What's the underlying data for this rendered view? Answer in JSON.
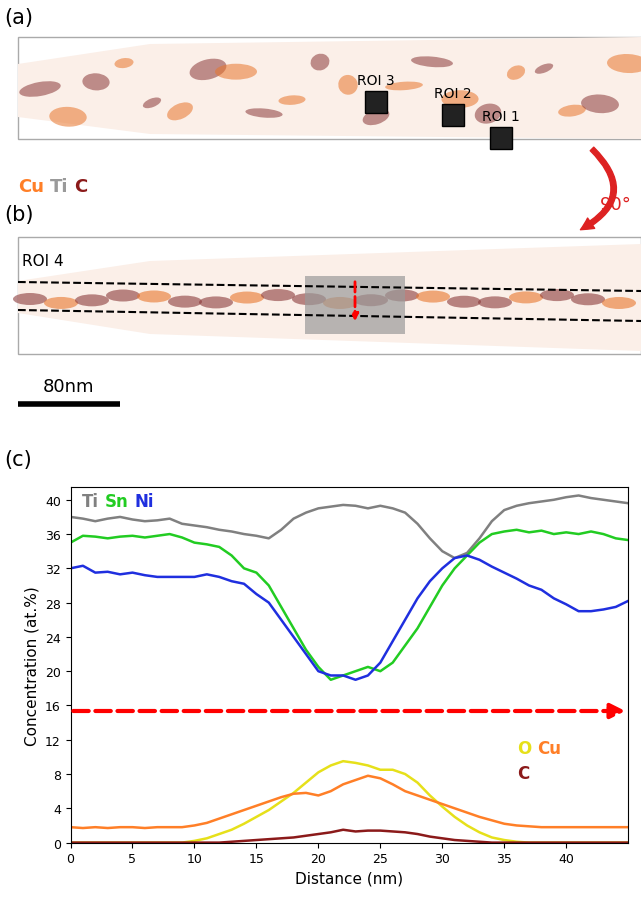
{
  "chart_data": {
    "type": "line",
    "xlabel": "Distance (nm)",
    "ylabel": "Concentration (at.%)",
    "x": [
      0,
      1,
      2,
      3,
      4,
      5,
      6,
      7,
      8,
      9,
      10,
      11,
      12,
      13,
      14,
      15,
      16,
      17,
      18,
      19,
      20,
      21,
      22,
      23,
      24,
      25,
      26,
      27,
      28,
      29,
      30,
      31,
      32,
      33,
      34,
      35,
      36,
      37,
      38,
      39,
      40,
      41,
      42,
      43,
      44,
      45
    ],
    "series": [
      {
        "name": "Ti",
        "color": "#808080",
        "values": [
          38,
          37.8,
          37.5,
          37.8,
          38,
          37.7,
          37.5,
          37.6,
          37.8,
          37.2,
          37,
          36.8,
          36.5,
          36.3,
          36,
          35.8,
          35.5,
          36.5,
          37.8,
          38.5,
          39,
          39.2,
          39.4,
          39.3,
          39,
          39.3,
          39,
          38.5,
          37.2,
          35.5,
          34,
          33.2,
          33.8,
          35.5,
          37.5,
          38.8,
          39.3,
          39.6,
          39.8,
          40,
          40.3,
          40.5,
          40.2,
          40,
          39.8,
          39.6
        ]
      },
      {
        "name": "Sn",
        "color": "#22cc22",
        "values": [
          35,
          35.8,
          35.7,
          35.5,
          35.7,
          35.8,
          35.6,
          35.8,
          36,
          35.6,
          35,
          34.8,
          34.5,
          33.5,
          32,
          31.5,
          30,
          27.5,
          25,
          22.5,
          20.5,
          19,
          19.5,
          20,
          20.5,
          20,
          21,
          23,
          25,
          27.5,
          30,
          32,
          33.5,
          35,
          36,
          36.3,
          36.5,
          36.2,
          36.4,
          36,
          36.2,
          36,
          36.3,
          36,
          35.5,
          35.3
        ]
      },
      {
        "name": "Ni",
        "color": "#1f2fdf",
        "values": [
          32,
          32.3,
          31.5,
          31.6,
          31.3,
          31.5,
          31.2,
          31,
          31,
          31,
          31,
          31.3,
          31,
          30.5,
          30.2,
          29,
          28,
          26,
          24,
          22,
          20,
          19.5,
          19.5,
          19,
          19.5,
          21,
          23.5,
          26,
          28.5,
          30.5,
          32,
          33.2,
          33.5,
          33,
          32.2,
          31.5,
          30.8,
          30,
          29.5,
          28.5,
          27.8,
          27,
          27,
          27.2,
          27.5,
          28.2
        ]
      },
      {
        "name": "O",
        "color": "#e6e01a",
        "values": [
          0,
          0,
          0,
          0,
          0,
          0,
          0,
          0,
          0,
          0,
          0.2,
          0.5,
          1,
          1.5,
          2.2,
          3,
          3.8,
          4.8,
          5.8,
          7,
          8.2,
          9,
          9.5,
          9.3,
          9,
          8.5,
          8.5,
          8,
          7,
          5.5,
          4.2,
          3,
          2,
          1.2,
          0.6,
          0.3,
          0.1,
          0,
          0,
          0,
          0,
          0,
          0,
          0,
          0,
          0
        ]
      },
      {
        "name": "Cu",
        "color": "#ff7f27",
        "values": [
          1.8,
          1.7,
          1.8,
          1.7,
          1.8,
          1.8,
          1.7,
          1.8,
          1.8,
          1.8,
          2,
          2.3,
          2.8,
          3.3,
          3.8,
          4.3,
          4.8,
          5.3,
          5.7,
          5.8,
          5.5,
          6,
          6.8,
          7.3,
          7.8,
          7.5,
          6.8,
          6,
          5.5,
          5,
          4.5,
          4,
          3.5,
          3,
          2.6,
          2.2,
          2,
          1.9,
          1.8,
          1.8,
          1.8,
          1.8,
          1.8,
          1.8,
          1.8,
          1.8
        ]
      },
      {
        "name": "C",
        "color": "#8b1a1a",
        "values": [
          0,
          0,
          0,
          0,
          0,
          0,
          0,
          0,
          0,
          0,
          0,
          0,
          0,
          0.1,
          0.2,
          0.3,
          0.4,
          0.5,
          0.6,
          0.8,
          1,
          1.2,
          1.5,
          1.3,
          1.4,
          1.4,
          1.3,
          1.2,
          1,
          0.7,
          0.5,
          0.3,
          0.2,
          0.1,
          0,
          0,
          0,
          0,
          0,
          0,
          0,
          0,
          0,
          0,
          0,
          0
        ]
      }
    ],
    "xlim": [
      0,
      45
    ],
    "xticks": [
      0,
      5,
      10,
      15,
      20,
      25,
      30,
      35,
      40
    ],
    "ylim": [
      0,
      41.5
    ],
    "yticks": [
      0,
      4,
      8,
      12,
      16,
      20,
      24,
      28,
      32,
      36,
      40
    ]
  },
  "figure": {
    "panel_labels": [
      "(a)",
      "(b)",
      "(c)"
    ],
    "element_key": [
      {
        "name": "Cu",
        "color": "#ff7f27"
      },
      {
        "name": "Ti",
        "color": "#9a9a9a"
      },
      {
        "name": "C",
        "color": "#8b1a1a"
      }
    ],
    "rois": [
      "ROI 1",
      "ROI 2",
      "ROI 3",
      "ROI 4"
    ],
    "rotation": "90°",
    "scale_bar": "80nm"
  }
}
